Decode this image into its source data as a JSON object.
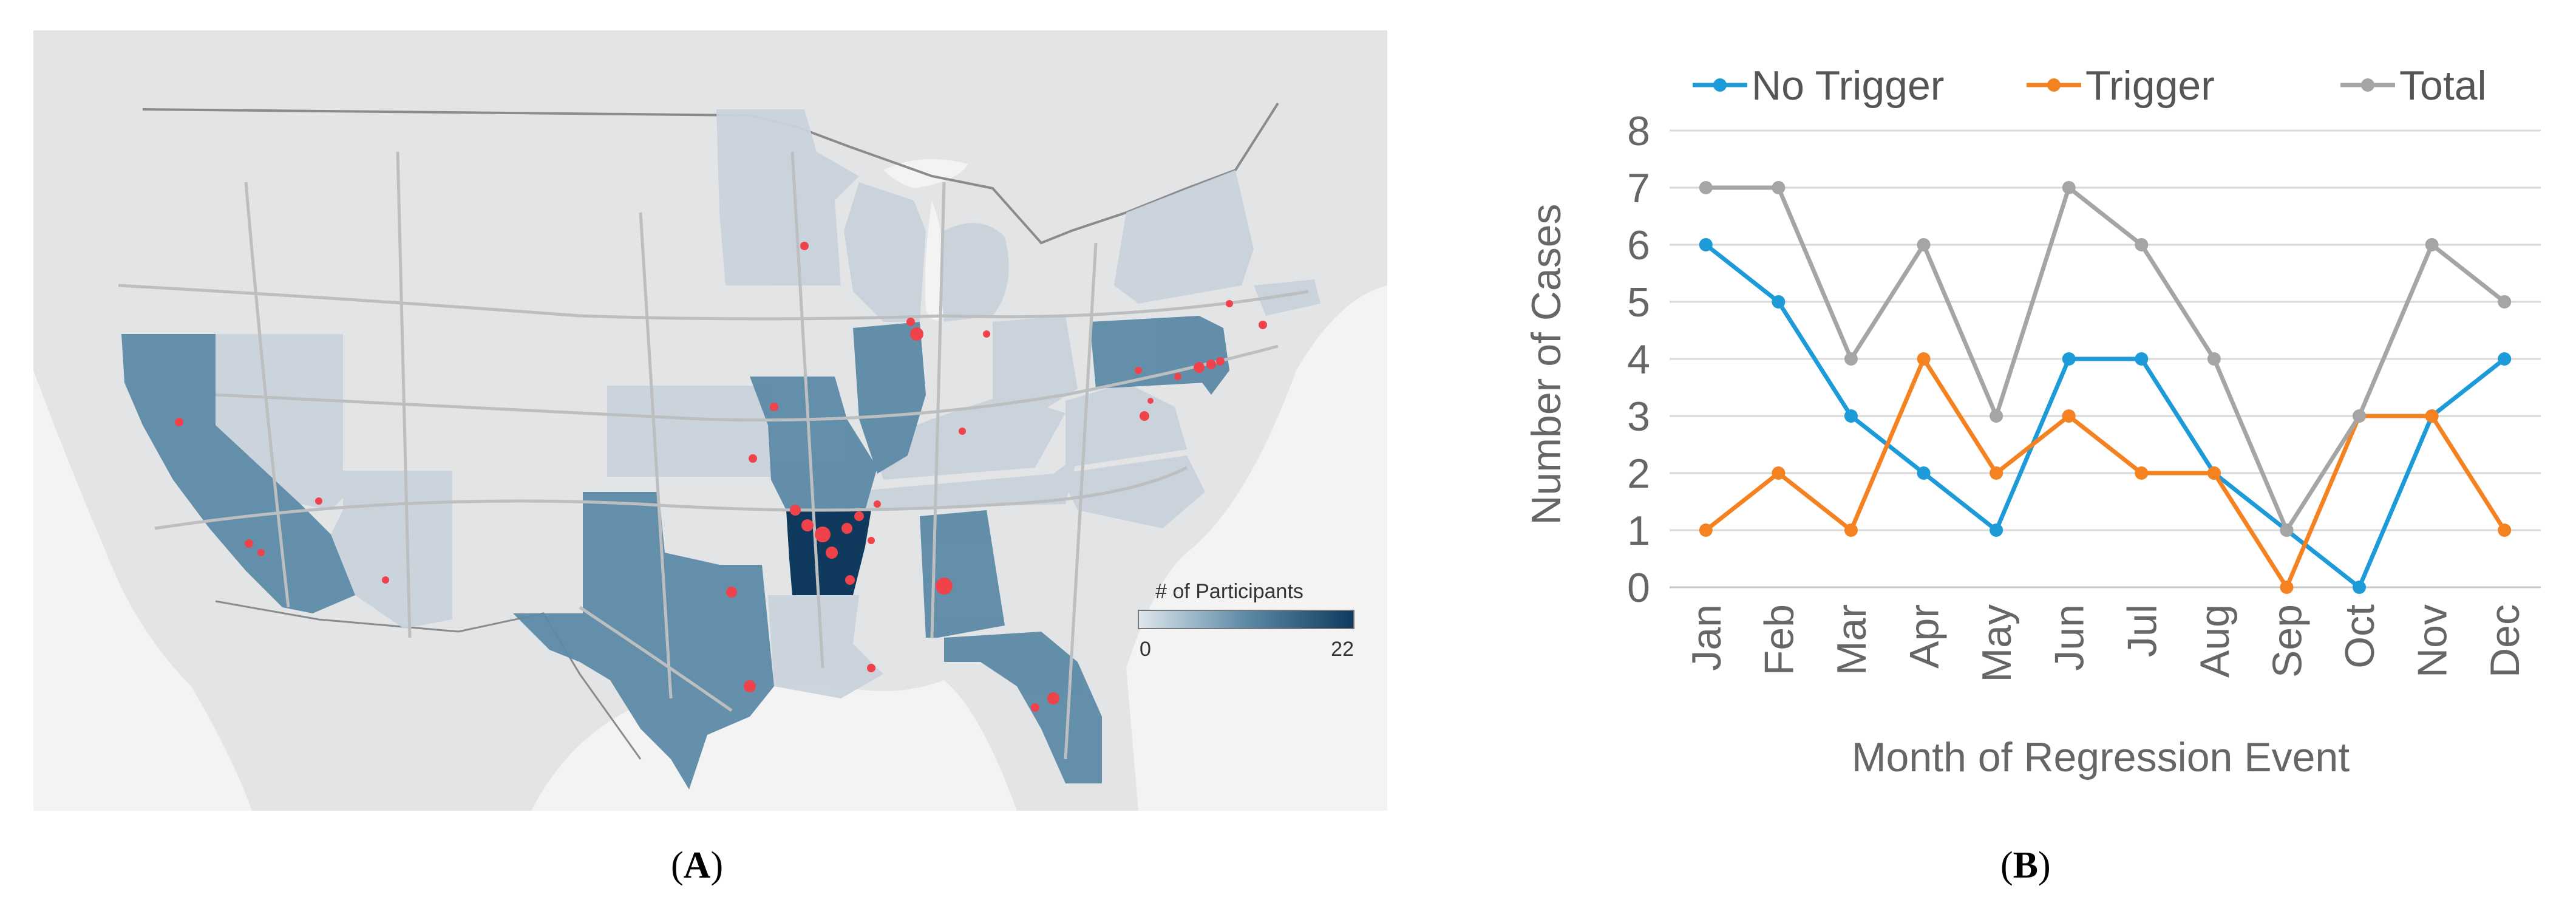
{
  "panel_a": {
    "label": "A",
    "legend_title": "# of Participants",
    "legend_min": "0",
    "legend_max": "22",
    "colors": {
      "low": "#c9d3dc",
      "mid": "#5c8aa6",
      "high": "#0f3a5e",
      "dot": "#f0424a",
      "land": "#e3e4e5",
      "road": "#bdbec0",
      "water": "#f4f4f4"
    },
    "states": [
      {
        "name": "California",
        "participants": 9
      },
      {
        "name": "Nevada",
        "participants": 1
      },
      {
        "name": "Arizona",
        "participants": 2
      },
      {
        "name": "Texas",
        "participants": 9
      },
      {
        "name": "Kansas",
        "participants": 1
      },
      {
        "name": "Missouri",
        "participants": 8
      },
      {
        "name": "Arkansas",
        "participants": 22
      },
      {
        "name": "Louisiana",
        "participants": 1
      },
      {
        "name": "Alabama",
        "participants": 8
      },
      {
        "name": "Florida",
        "participants": 8
      },
      {
        "name": "Illinois",
        "participants": 8
      },
      {
        "name": "Minnesota",
        "participants": 1
      },
      {
        "name": "Wisconsin",
        "participants": 1
      },
      {
        "name": "Michigan",
        "participants": 1
      },
      {
        "name": "Ohio",
        "participants": 1
      },
      {
        "name": "Kentucky",
        "participants": 1
      },
      {
        "name": "Tennessee",
        "participants": 1
      },
      {
        "name": "Virginia",
        "participants": 1
      },
      {
        "name": "North Carolina",
        "participants": 1
      },
      {
        "name": "Pennsylvania",
        "participants": 8
      },
      {
        "name": "New Jersey",
        "participants": 8
      },
      {
        "name": "New York",
        "participants": 1
      },
      {
        "name": "Massachusetts",
        "participants": 1
      }
    ]
  },
  "panel_b": {
    "label": "B"
  },
  "chart_data": {
    "type": "line",
    "title": "",
    "xlabel": "Month of Regression Event",
    "ylabel": "Number of Cases",
    "categories": [
      "Jan",
      "Feb",
      "Mar",
      "Apr",
      "May",
      "Jun",
      "Jul",
      "Aug",
      "Sep",
      "Oct",
      "Nov",
      "Dec"
    ],
    "ylim": [
      0,
      8
    ],
    "yticks": [
      "0",
      "1",
      "2",
      "3",
      "4",
      "5",
      "6",
      "7",
      "8"
    ],
    "grid": true,
    "legend_position": "top",
    "series": [
      {
        "name": "No Trigger",
        "color": "#1c9bd8",
        "values": [
          6,
          5,
          3,
          2,
          1,
          4,
          4,
          2,
          1,
          0,
          3,
          4
        ]
      },
      {
        "name": "Trigger",
        "color": "#f58220",
        "values": [
          1,
          2,
          1,
          4,
          2,
          3,
          2,
          2,
          0,
          3,
          3,
          1
        ]
      },
      {
        "name": "Total",
        "color": "#a5a5a5",
        "values": [
          7,
          7,
          4,
          6,
          3,
          7,
          6,
          4,
          1,
          3,
          6,
          5
        ]
      }
    ]
  }
}
